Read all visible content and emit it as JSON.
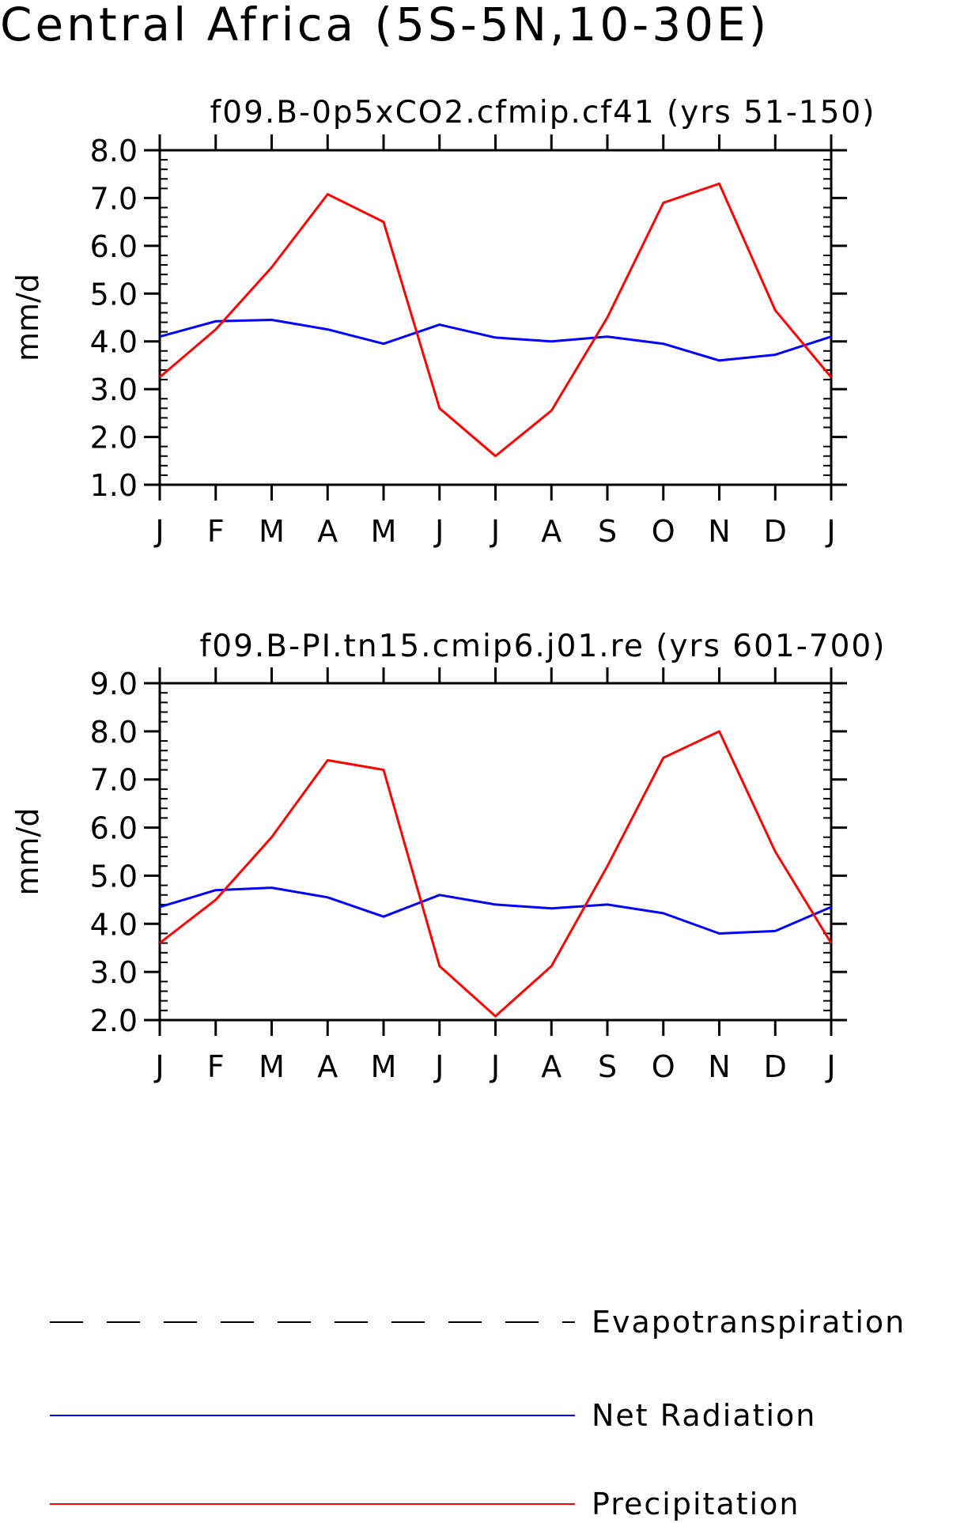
{
  "title": "Central Africa (5S-5N,10-30E)",
  "colors": {
    "evapotranspiration": "#000000",
    "net_radiation": "#0000ff",
    "precipitation": "#ff0000"
  },
  "legend": [
    {
      "name": "Evapotranspiration",
      "style": "dashed",
      "color": "#000000"
    },
    {
      "name": "Net Radiation",
      "style": "solid",
      "color": "#0000ff"
    },
    {
      "name": "Precipitation",
      "style": "solid",
      "color": "#ff0000"
    }
  ],
  "chart_data": [
    {
      "type": "line",
      "title": "f09.B-0p5xCO2.cfmip.cf41 (yrs 51-150)",
      "ylabel": "mm/d",
      "xlabel": "",
      "ylim": [
        1.0,
        8.0
      ],
      "yticks": [
        "1.0",
        "2.0",
        "3.0",
        "4.0",
        "5.0",
        "6.0",
        "7.0",
        "8.0"
      ],
      "categories": [
        "J",
        "F",
        "M",
        "A",
        "M",
        "J",
        "J",
        "A",
        "S",
        "O",
        "N",
        "D",
        "J"
      ],
      "series": [
        {
          "name": "Net Radiation",
          "color": "#0000ff",
          "values": [
            4.1,
            4.42,
            4.45,
            4.25,
            3.95,
            4.35,
            4.08,
            4.0,
            4.1,
            3.95,
            3.6,
            3.72,
            4.1
          ]
        },
        {
          "name": "Precipitation",
          "color": "#ff0000",
          "values": [
            3.25,
            4.25,
            5.55,
            7.08,
            6.5,
            2.6,
            1.6,
            2.55,
            4.5,
            6.9,
            7.3,
            4.65,
            3.25
          ]
        }
      ]
    },
    {
      "type": "line",
      "title": "f09.B-PI.tn15.cmip6.j01.re (yrs 601-700)",
      "ylabel": "mm/d",
      "xlabel": "",
      "ylim": [
        2.0,
        9.0
      ],
      "yticks": [
        "2.0",
        "3.0",
        "4.0",
        "5.0",
        "6.0",
        "7.0",
        "8.0",
        "9.0"
      ],
      "categories": [
        "J",
        "F",
        "M",
        "A",
        "M",
        "J",
        "J",
        "A",
        "S",
        "O",
        "N",
        "D",
        "J"
      ],
      "series": [
        {
          "name": "Net Radiation",
          "color": "#0000ff",
          "values": [
            4.35,
            4.7,
            4.75,
            4.55,
            4.15,
            4.6,
            4.4,
            4.32,
            4.4,
            4.22,
            3.8,
            3.85,
            4.35
          ]
        },
        {
          "name": "Precipitation",
          "color": "#ff0000",
          "values": [
            3.6,
            4.5,
            5.8,
            7.4,
            7.2,
            3.12,
            2.08,
            3.12,
            5.2,
            7.45,
            8.0,
            5.5,
            3.6
          ]
        }
      ]
    }
  ]
}
